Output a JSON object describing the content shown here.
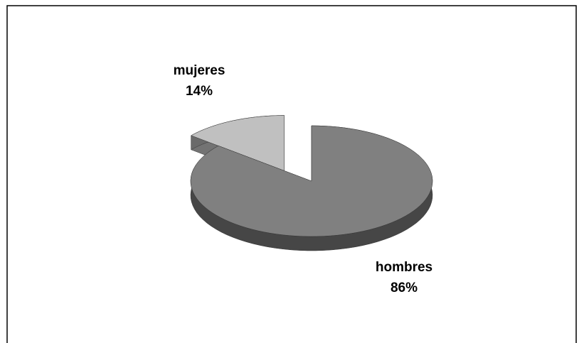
{
  "chart_data": {
    "type": "pie",
    "categories": [
      "hombres",
      "mujeres"
    ],
    "values": [
      86,
      14
    ],
    "value_labels": [
      "86%",
      "14%"
    ],
    "colors": [
      "#808080",
      "#c0c0c0"
    ]
  }
}
